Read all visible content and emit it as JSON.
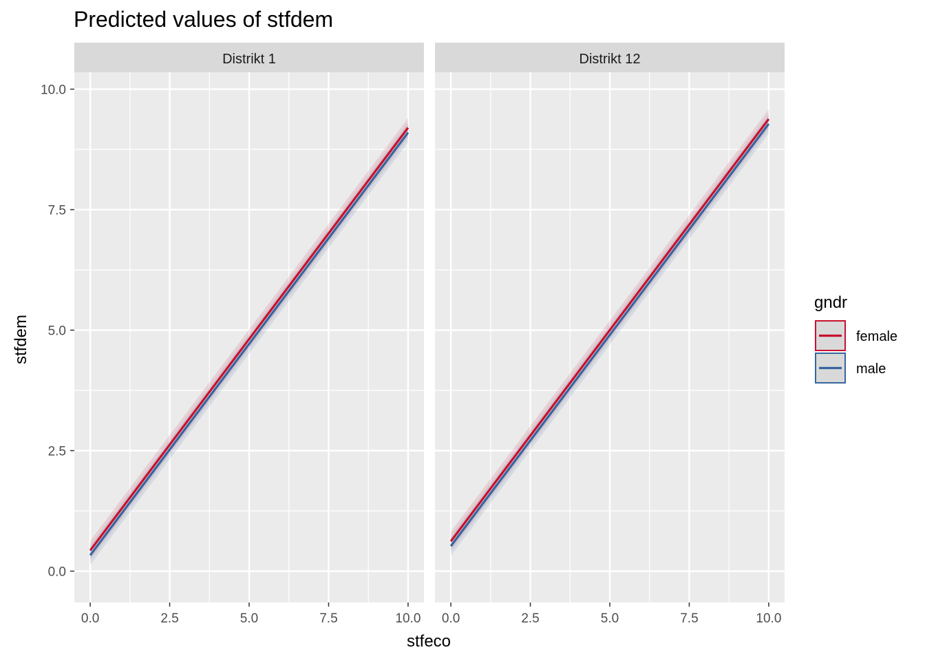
{
  "chart_data": {
    "type": "line",
    "title": "Predicted values of stfdem",
    "xlabel": "stfeco",
    "ylabel": "stfdem",
    "xlim": [
      -0.5,
      10.5
    ],
    "ylim": [
      -0.65,
      10.35
    ],
    "x_ticks": [
      0,
      2.5,
      5,
      7.5,
      10
    ],
    "x_tick_labels": [
      "0.0",
      "2.5",
      "5.0",
      "7.5",
      "10.0"
    ],
    "y_ticks": [
      0,
      2.5,
      5,
      7.5,
      10
    ],
    "y_tick_labels": [
      "0.0",
      "2.5",
      "5.0",
      "7.5",
      "10.0"
    ],
    "grid": true,
    "legend": {
      "title": "gndr",
      "placement": "right",
      "entries": [
        {
          "label": "female",
          "color": "#c8102e"
        },
        {
          "label": "male",
          "color": "#3565a0"
        }
      ]
    },
    "panels": [
      {
        "strip": "Distrikt 1",
        "series": [
          {
            "name": "female",
            "color": "#c8102e",
            "x": [
              0,
              10
            ],
            "y": [
              0.43,
              9.2
            ],
            "ci_lower": [
              0.23,
              9.0
            ],
            "ci_upper": [
              0.63,
              9.4
            ]
          },
          {
            "name": "male",
            "color": "#3565a0",
            "x": [
              0,
              10
            ],
            "y": [
              0.33,
              9.1
            ],
            "ci_lower": [
              0.13,
              8.9
            ],
            "ci_upper": [
              0.53,
              9.3
            ]
          }
        ]
      },
      {
        "strip": "Distrikt 12",
        "series": [
          {
            "name": "female",
            "color": "#c8102e",
            "x": [
              0,
              10
            ],
            "y": [
              0.62,
              9.38
            ],
            "ci_lower": [
              0.42,
              9.18
            ],
            "ci_upper": [
              0.82,
              9.58
            ]
          },
          {
            "name": "male",
            "color": "#3565a0",
            "x": [
              0,
              10
            ],
            "y": [
              0.52,
              9.28
            ],
            "ci_lower": [
              0.32,
              9.08
            ],
            "ci_upper": [
              0.72,
              9.48
            ]
          }
        ]
      }
    ]
  }
}
